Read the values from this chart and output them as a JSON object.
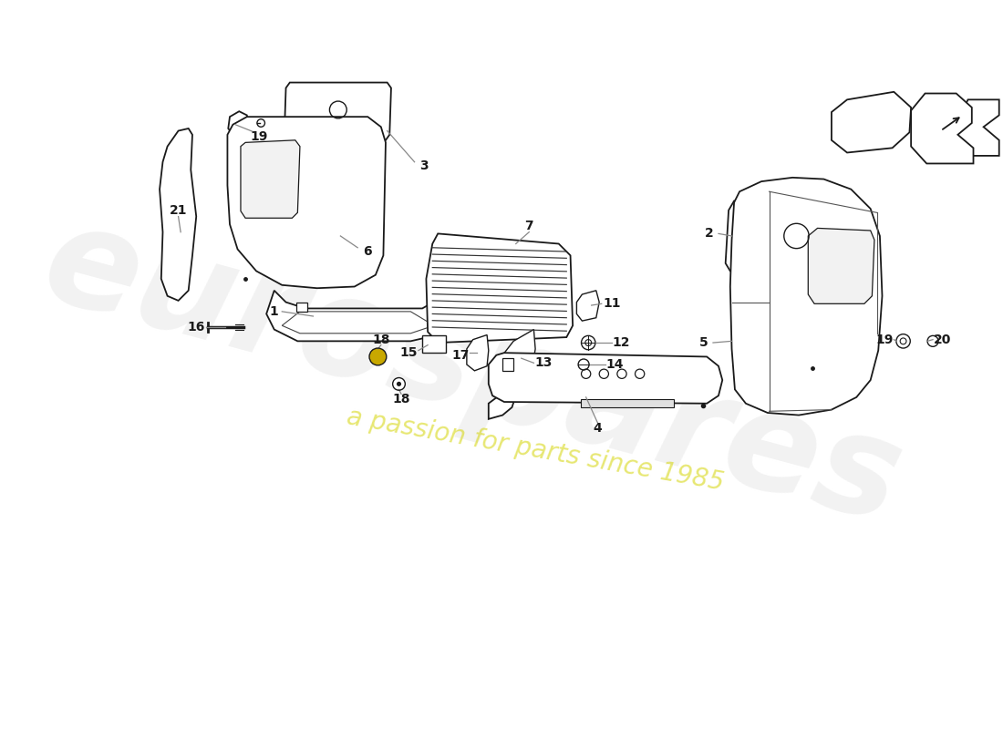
{
  "background_color": "#ffffff",
  "line_color": "#1a1a1a",
  "label_color": "#1a1a1a",
  "leader_line_color": "#888888",
  "watermark_text1": "eurospares",
  "watermark_text2": "a passion for parts since 1985",
  "watermark_color": "#cccccc",
  "watermark_yellow": "#d4d400"
}
